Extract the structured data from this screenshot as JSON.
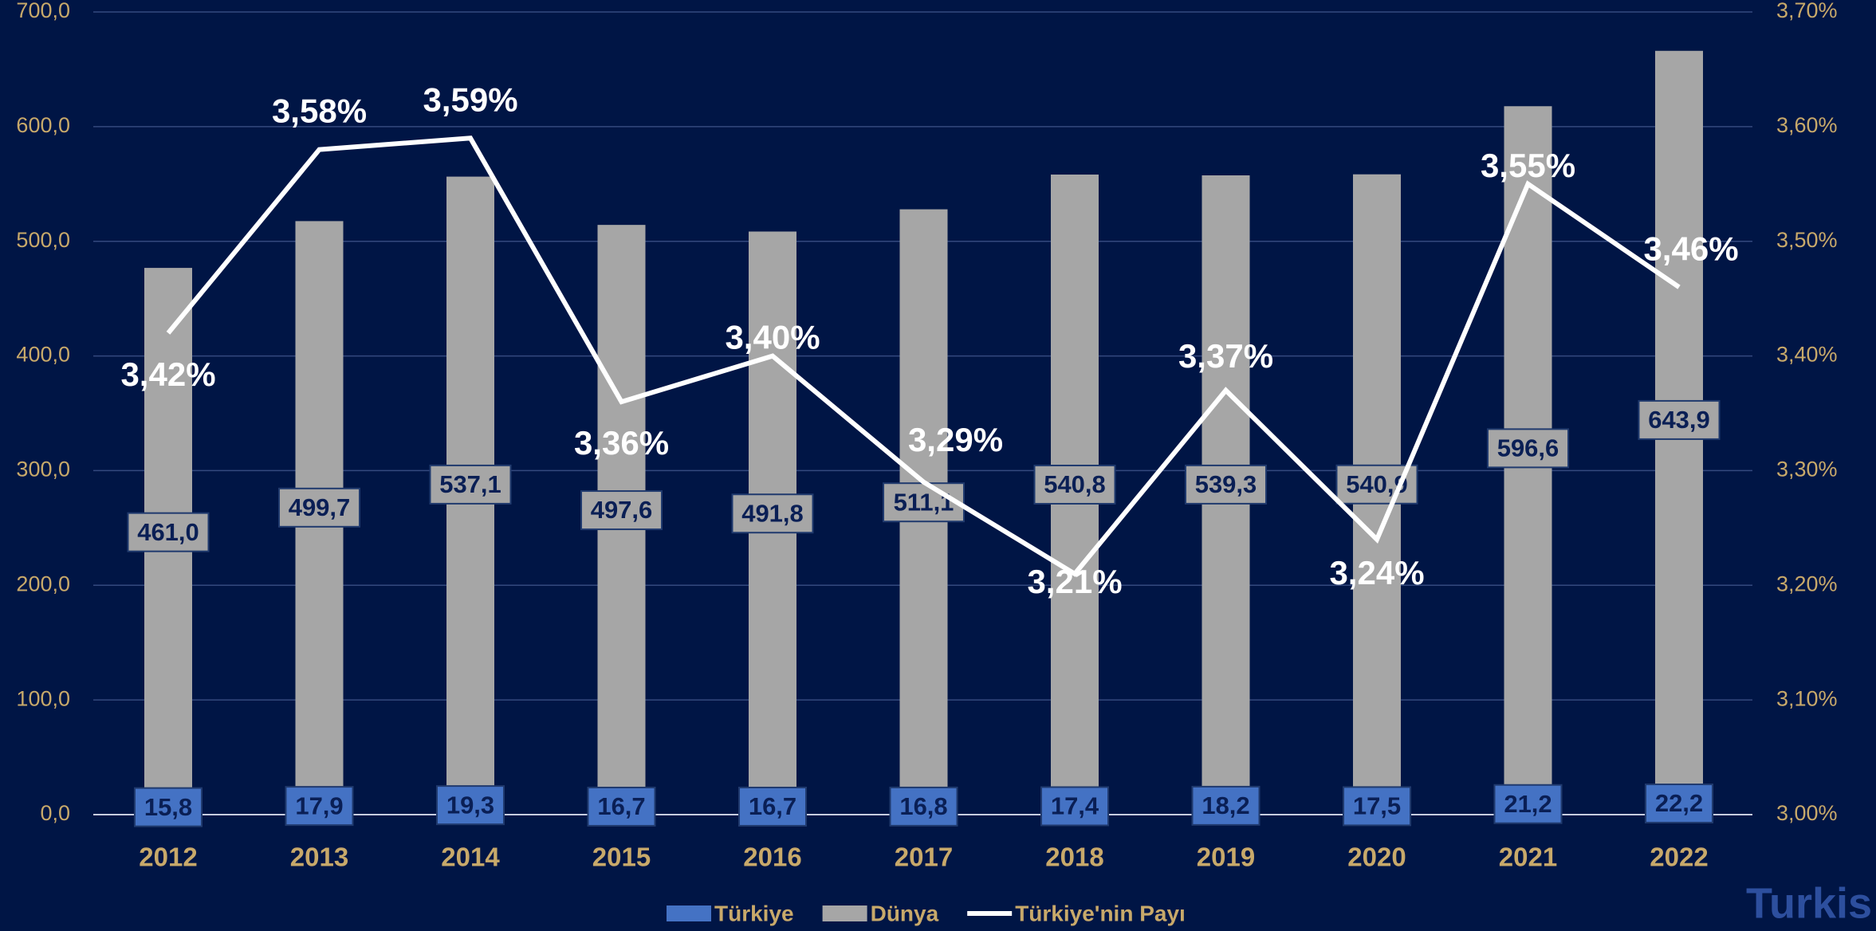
{
  "chart_data": {
    "type": "bar_line",
    "categories": [
      "2012",
      "2013",
      "2014",
      "2015",
      "2016",
      "2017",
      "2018",
      "2019",
      "2020",
      "2021",
      "2022"
    ],
    "series": [
      {
        "name": "Türkiye",
        "color": "#4472c4",
        "stack": true,
        "values": [
          15.8,
          17.9,
          19.3,
          16.7,
          16.7,
          16.8,
          17.4,
          18.2,
          17.5,
          21.2,
          22.2
        ],
        "value_labels": [
          "15,8",
          "17,9",
          "19,3",
          "16,7",
          "16,7",
          "16,8",
          "17,4",
          "18,2",
          "17,5",
          "21,2",
          "22,2"
        ]
      },
      {
        "name": "Dünya",
        "color": "#a6a6a6",
        "stack": true,
        "values": [
          461.0,
          499.7,
          537.1,
          497.6,
          491.8,
          511.1,
          540.8,
          539.3,
          540.9,
          596.6,
          643.9
        ],
        "value_labels": [
          "461,0",
          "499,7",
          "537,1",
          "497,6",
          "491,8",
          "511,1",
          "540,8",
          "539,3",
          "540,9",
          "596,6",
          "643,9"
        ]
      },
      {
        "name": "Türkiye'nin Payı",
        "color": "#ffffff",
        "type": "line",
        "axis": "y2",
        "values": [
          3.42,
          3.58,
          3.59,
          3.36,
          3.4,
          3.29,
          3.21,
          3.37,
          3.24,
          3.55,
          3.46
        ],
        "value_labels": [
          "3,42%",
          "3,58%",
          "3,59%",
          "3,36%",
          "3,40%",
          "3,29%",
          "3,21%",
          "3,37%",
          "3,24%",
          "3,55%",
          "3,46%"
        ]
      }
    ],
    "ylim": [
      0,
      700
    ],
    "yticks": [
      {
        "value": 0,
        "label": "0,0"
      },
      {
        "value": 100,
        "label": "100,0"
      },
      {
        "value": 200,
        "label": "200,0"
      },
      {
        "value": 300,
        "label": "300,0"
      },
      {
        "value": 400,
        "label": "400,0"
      },
      {
        "value": 500,
        "label": "500,0"
      },
      {
        "value": 600,
        "label": "600,0"
      },
      {
        "value": 700,
        "label": "700,0"
      }
    ],
    "y2lim": [
      3.0,
      3.7
    ],
    "y2ticks": [
      {
        "value": 3.0,
        "label": "3,00%"
      },
      {
        "value": 3.1,
        "label": "3,10%"
      },
      {
        "value": 3.2,
        "label": "3,20%"
      },
      {
        "value": 3.3,
        "label": "3,30%"
      },
      {
        "value": 3.4,
        "label": "3,40%"
      },
      {
        "value": 3.5,
        "label": "3,50%"
      },
      {
        "value": 3.6,
        "label": "3,60%"
      },
      {
        "value": 3.7,
        "label": "3,70%"
      }
    ],
    "grid": true,
    "legend": "bottom",
    "brand": "Turkis"
  }
}
